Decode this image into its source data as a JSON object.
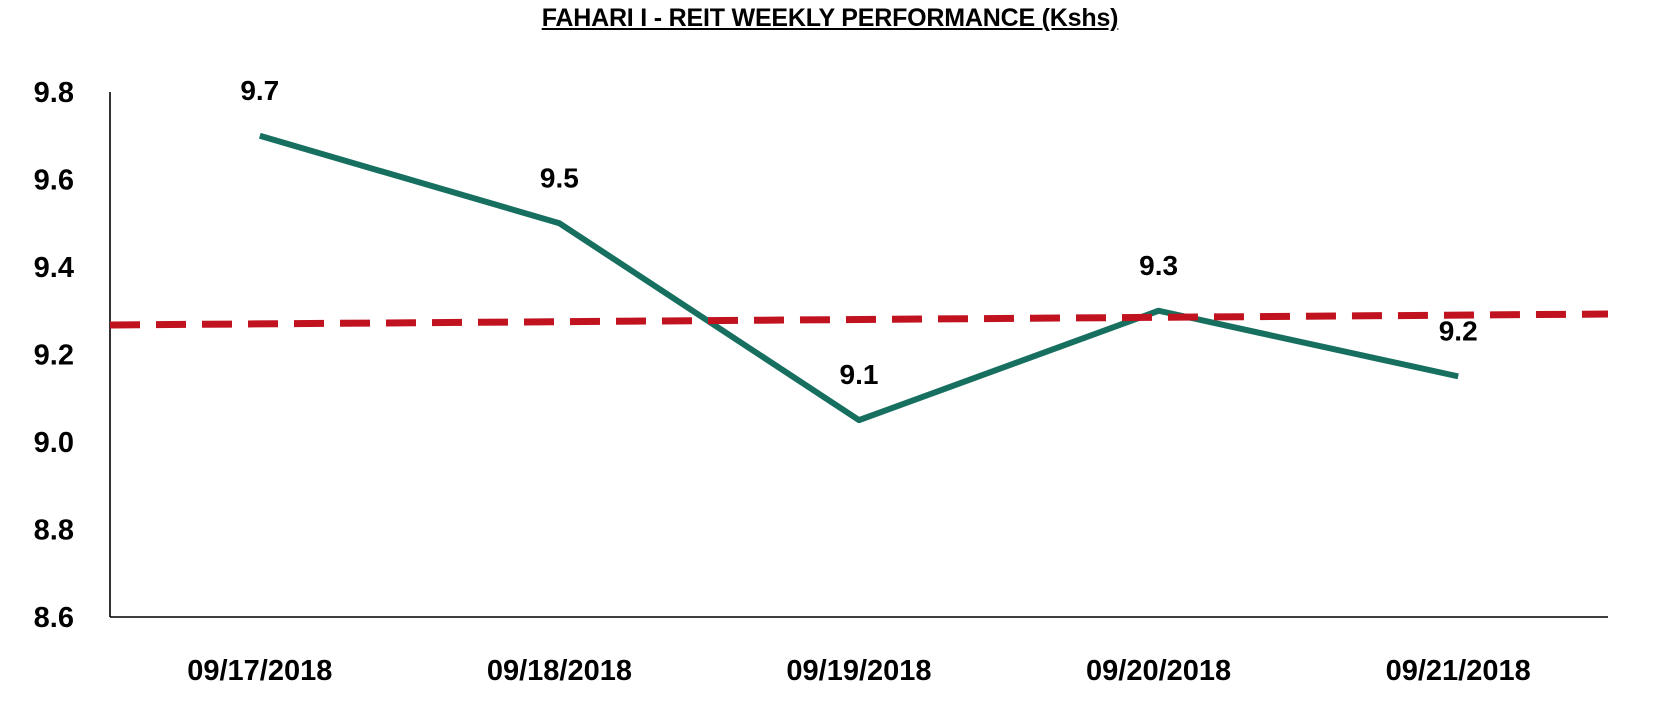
{
  "chart_data": {
    "type": "line",
    "title": "FAHARI I - REIT WEEKLY PERFORMANCE (Kshs)",
    "categories": [
      "09/17/2018",
      "09/18/2018",
      "09/19/2018",
      "09/20/2018",
      "09/21/2018"
    ],
    "series": [
      {
        "values": [
          9.7,
          9.5,
          9.05,
          9.3,
          9.15
        ],
        "data_labels": [
          "9.7",
          "9.5",
          "9.1",
          "9.3",
          "9.2"
        ],
        "color": "#17705f",
        "style": "solid"
      },
      {
        "values": [
          9.27,
          9.275,
          9.28,
          9.285,
          9.29
        ],
        "color": "#c0121f",
        "style": "dashed",
        "extends_to_axis_edges": true
      }
    ],
    "ylim": [
      8.6,
      9.8
    ],
    "yticks": [
      "9.8",
      "9.6",
      "9.4",
      "9.2",
      "9.0",
      "8.8",
      "8.6"
    ],
    "grid": false,
    "legend": "none"
  }
}
